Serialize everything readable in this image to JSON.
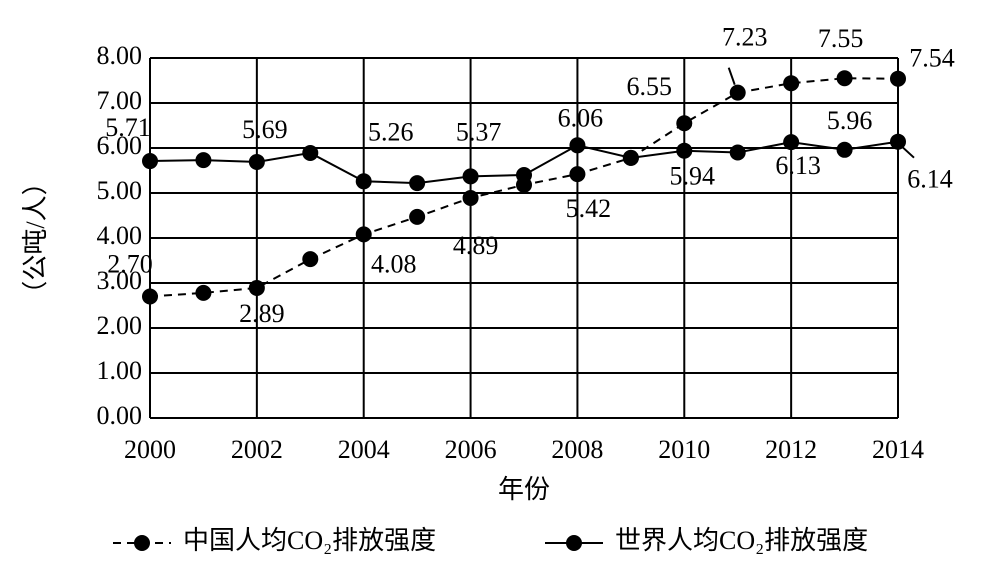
{
  "chart_data": {
    "type": "line",
    "y_label": "（公吨/人）",
    "x_label": "年份",
    "x": [
      2000,
      2001,
      2002,
      2003,
      2004,
      2005,
      2006,
      2007,
      2008,
      2009,
      2010,
      2011,
      2012,
      2013,
      2014
    ],
    "series": [
      {
        "name": "中国人均CO₂排放强度",
        "color": "#000000",
        "dashed": true,
        "values": [
          2.7,
          2.78,
          2.89,
          3.53,
          4.08,
          4.47,
          4.89,
          5.18,
          5.42,
          5.78,
          6.55,
          7.23,
          7.44,
          7.55,
          7.54
        ],
        "value_labels": [
          "2.70",
          null,
          "2.89",
          null,
          "4.08",
          null,
          "4.89",
          null,
          "5.42",
          null,
          "6.55",
          "7.23",
          null,
          "7.55",
          "7.54"
        ]
      },
      {
        "name": "世界人均CO₂排放强度",
        "color": "#000000",
        "dashed": false,
        "values": [
          5.71,
          5.73,
          5.69,
          5.89,
          5.26,
          5.22,
          5.37,
          5.4,
          6.06,
          5.78,
          5.94,
          5.9,
          6.13,
          5.96,
          6.14
        ],
        "value_labels": [
          "5.71",
          null,
          "5.69",
          null,
          "5.26",
          null,
          "5.37",
          null,
          "6.06",
          null,
          "5.94",
          null,
          "6.13",
          "5.96",
          "6.14"
        ]
      }
    ],
    "xlim": [
      2000,
      2014
    ],
    "xticks": [
      2000,
      2002,
      2004,
      2006,
      2008,
      2010,
      2012,
      2014
    ],
    "ylim": [
      0,
      8
    ],
    "yticks": [
      {
        "value": 0,
        "label": "0.00"
      },
      {
        "value": 1,
        "label": "1.00"
      },
      {
        "value": 2,
        "label": "2.00"
      },
      {
        "value": 3,
        "label": "3.00"
      },
      {
        "value": 4,
        "label": "4.00"
      },
      {
        "value": 5,
        "label": "5.00"
      },
      {
        "value": 6,
        "label": "6.00"
      },
      {
        "value": 7,
        "label": "7.00"
      },
      {
        "value": 8,
        "label": "8.00"
      }
    ],
    "grid": true,
    "legend": "bottom"
  }
}
